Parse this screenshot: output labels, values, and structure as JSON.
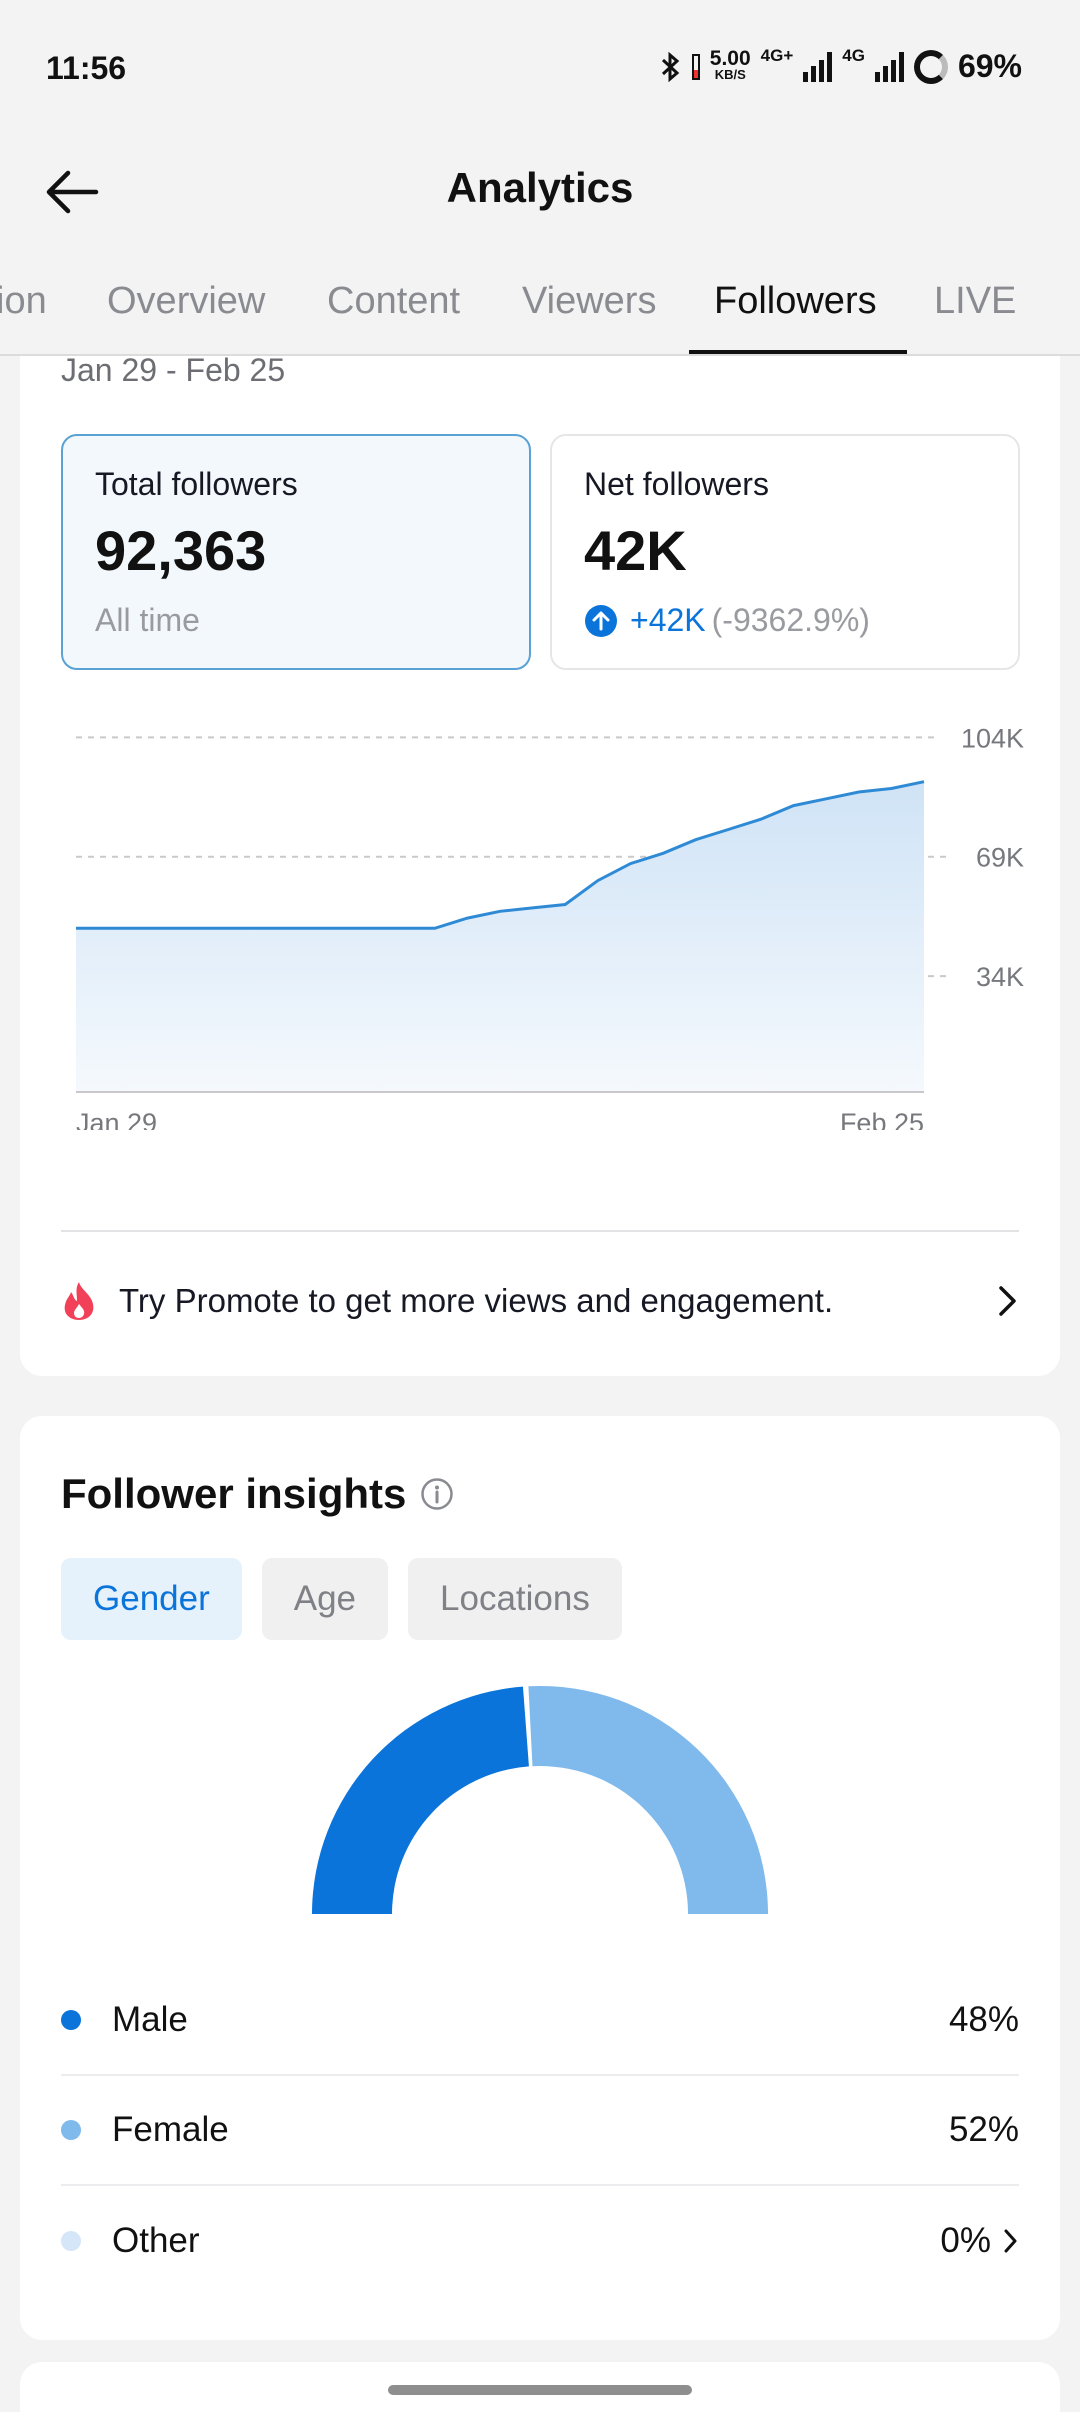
{
  "status": {
    "time": "11:56",
    "net_speed_top": "5.00",
    "net_speed_bottom": "KB/S",
    "net_type_1": "4G+",
    "net_type_2": "4G",
    "battery": "69%"
  },
  "header": {
    "title": "Analytics",
    "back_icon": "arrow-left-icon"
  },
  "tabs": [
    {
      "label": "ion"
    },
    {
      "label": "Overview"
    },
    {
      "label": "Content"
    },
    {
      "label": "Viewers"
    },
    {
      "label": "Followers",
      "active": true
    },
    {
      "label": "LIVE"
    }
  ],
  "followers": {
    "date_range": "Jan 29 - Feb 25",
    "total": {
      "label": "Total followers",
      "value": "92,363",
      "sub": "All time"
    },
    "net": {
      "label": "Net followers",
      "value": "42K",
      "delta": "+42K",
      "delta_pct": "(-9362.9%)"
    }
  },
  "chart_data": {
    "type": "area",
    "x_start_label": "Jan 29",
    "x_end_label": "Feb 25",
    "y_ticks": [
      "104K",
      "69K",
      "34K"
    ],
    "ylim": [
      0,
      104000
    ],
    "grid": true,
    "color": "#2f8ad6",
    "values": [
      48000,
      48000,
      48000,
      48000,
      48000,
      48000,
      48000,
      48000,
      48000,
      48000,
      48000,
      48000,
      51000,
      53000,
      54000,
      55000,
      62000,
      67000,
      70000,
      74000,
      77000,
      80000,
      84000,
      86000,
      88000,
      89000,
      91000
    ]
  },
  "promo": {
    "text": "Try Promote to get more views and engagement.",
    "icon": "flame-icon"
  },
  "insights": {
    "title": "Follower insights",
    "chips": [
      {
        "label": "Gender",
        "active": true
      },
      {
        "label": "Age"
      },
      {
        "label": "Locations"
      }
    ],
    "gender": [
      {
        "name": "Male",
        "value": "48%",
        "pct": 48,
        "color": "#0a74da"
      },
      {
        "name": "Female",
        "value": "52%",
        "pct": 52,
        "color": "#80b9ec"
      },
      {
        "name": "Other",
        "value": "0%",
        "pct": 0,
        "color": "#d4e6f8"
      }
    ]
  }
}
